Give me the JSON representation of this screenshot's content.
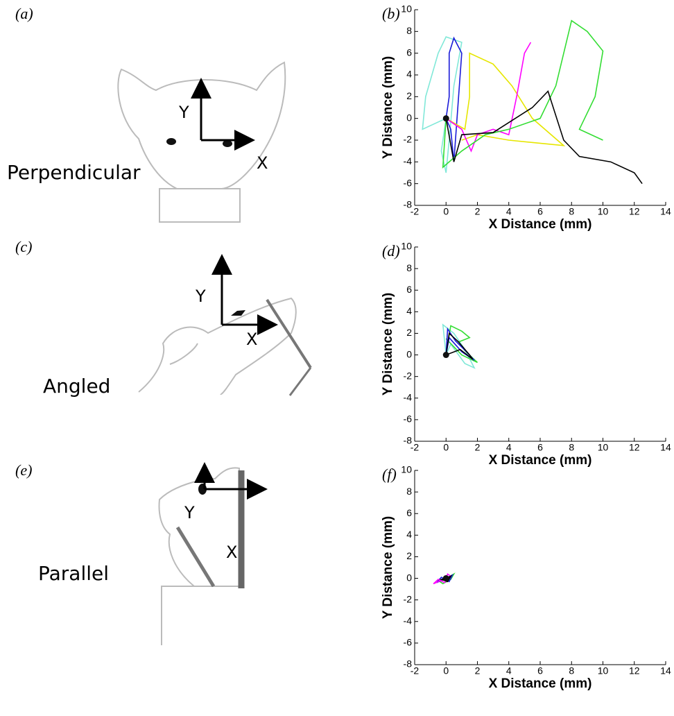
{
  "panels": [
    {
      "label": "(a)",
      "caption": "Perpendicular",
      "axis_x": "X",
      "axis_y": "Y"
    },
    {
      "label": "(c)",
      "caption": "Angled",
      "axis_x": "X",
      "axis_y": "Y"
    },
    {
      "label": "(e)",
      "caption": "Parallel",
      "axis_x": "X",
      "axis_y": "Y"
    }
  ],
  "chart_data": [
    {
      "type": "line",
      "label": "(b)",
      "x_label": "X Distance (mm)",
      "y_label": "Y Distance (mm)",
      "xlim": [
        -2,
        14
      ],
      "ylim": [
        -8,
        10
      ],
      "xticks": [
        -2,
        0,
        2,
        4,
        6,
        8,
        10,
        12,
        14
      ],
      "yticks": [
        -8,
        -6,
        -4,
        -2,
        0,
        2,
        4,
        6,
        8,
        10
      ],
      "series": [
        {
          "color": "#80e8d8",
          "x": [
            0,
            -1.5,
            -1.3,
            -0.5,
            0,
            1,
            0.5,
            0.2,
            0,
            -0.3,
            0
          ],
          "values": [
            0,
            -1,
            2,
            6,
            7.5,
            7,
            3,
            -2,
            -5,
            -3,
            0
          ]
        },
        {
          "color": "#1a1ad8",
          "x": [
            0,
            0.2,
            0.2,
            0.5,
            1,
            0.8,
            0.5,
            0.3,
            0
          ],
          "values": [
            0,
            2,
            6,
            7.4,
            6,
            2,
            -4,
            -1,
            0
          ]
        },
        {
          "color": "#e6e600",
          "x": [
            0,
            1.2,
            1.5,
            1.5,
            3,
            4.2,
            5.5,
            7.5,
            4,
            2,
            1
          ],
          "values": [
            0,
            -1,
            2,
            6,
            5,
            3,
            0,
            -2.5,
            -2,
            -1.5,
            -2
          ]
        },
        {
          "color": "#ff00ff",
          "x": [
            0,
            1,
            1.6,
            2,
            3,
            4,
            4.5,
            5,
            5.4
          ],
          "values": [
            0,
            -1,
            -3,
            -1.5,
            -1,
            -1.5,
            2,
            6,
            7
          ]
        },
        {
          "color": "#33dd33",
          "x": [
            0,
            -0.2,
            1,
            2.5,
            4,
            6,
            7,
            7.5,
            8,
            9,
            10,
            9.5,
            8.5,
            10
          ],
          "values": [
            0,
            -4.5,
            -3,
            -1.5,
            -1,
            0,
            3,
            6,
            9,
            8,
            6.2,
            2,
            -1,
            -2
          ]
        },
        {
          "color": "#000000",
          "x": [
            0,
            0.5,
            1,
            3,
            5.5,
            6.5,
            7.5,
            8.5,
            10.5,
            12,
            12.5
          ],
          "values": [
            0,
            -4,
            -1.5,
            -1.3,
            1,
            2.5,
            -2,
            -3.5,
            -4,
            -5,
            -6
          ]
        }
      ]
    },
    {
      "type": "line",
      "label": "(d)",
      "x_label": "X Distance (mm)",
      "y_label": "Y Distance (mm)",
      "xlim": [
        -2,
        14
      ],
      "ylim": [
        -8,
        10
      ],
      "xticks": [
        -2,
        0,
        2,
        4,
        6,
        8,
        10,
        12,
        14
      ],
      "yticks": [
        -8,
        -6,
        -4,
        -2,
        0,
        2,
        4,
        6,
        8,
        10
      ],
      "series": [
        {
          "color": "#80e8d8",
          "x": [
            0,
            -0.2,
            0.5,
            1.2,
            1.8,
            1.2,
            0.3,
            0
          ],
          "values": [
            0,
            2.8,
            2,
            0.5,
            -1.2,
            -0.8,
            1,
            0
          ]
        },
        {
          "color": "#33dd33",
          "x": [
            0,
            0.3,
            1,
            1.5,
            0.8,
            1.2,
            2,
            1,
            0
          ],
          "values": [
            0,
            2.7,
            2.2,
            1.6,
            1.2,
            0.4,
            -0.7,
            0,
            1.5
          ]
        },
        {
          "color": "#1a1ad8",
          "x": [
            0,
            0.1,
            0.6,
            1.3,
            1.8,
            1,
            0.2,
            0
          ],
          "values": [
            0,
            2.4,
            1.3,
            0.3,
            -0.5,
            0.3,
            1.6,
            0
          ]
        },
        {
          "color": "#000000",
          "x": [
            0,
            0.2,
            0.8,
            1.5,
            1.7,
            0.9,
            0
          ],
          "values": [
            0,
            2,
            1.2,
            0,
            -0.4,
            0.5,
            0
          ]
        }
      ]
    },
    {
      "type": "line",
      "label": "(f)",
      "x_label": "X Distance (mm)",
      "y_label": "Y Distance (mm)",
      "xlim": [
        -2,
        14
      ],
      "ylim": [
        -8,
        10
      ],
      "xticks": [
        -2,
        0,
        2,
        4,
        6,
        8,
        10,
        12,
        14
      ],
      "yticks": [
        -8,
        -6,
        -4,
        -2,
        0,
        2,
        4,
        6,
        8,
        10
      ],
      "series": [
        {
          "color": "#33dd33",
          "x": [
            0,
            -0.5,
            -0.2,
            0.3,
            0.5,
            0
          ],
          "values": [
            0,
            -0.2,
            -0.5,
            -0.1,
            0.4,
            0
          ]
        },
        {
          "color": "#1a1ad8",
          "x": [
            0,
            -0.6,
            -0.3,
            0.2,
            0.4,
            0
          ],
          "values": [
            0,
            -0.4,
            0.1,
            -0.3,
            0.3,
            0
          ]
        },
        {
          "color": "#ff00ff",
          "x": [
            0,
            -0.8,
            -0.5,
            -0.1,
            0.3,
            0.1,
            0
          ],
          "values": [
            0,
            -0.5,
            -0.1,
            -0.4,
            0.2,
            0.4,
            0
          ]
        },
        {
          "color": "#000000",
          "x": [
            0,
            -0.3,
            0.1,
            0.3,
            0
          ],
          "values": [
            0,
            -0.1,
            -0.3,
            0.2,
            0
          ]
        }
      ]
    }
  ]
}
